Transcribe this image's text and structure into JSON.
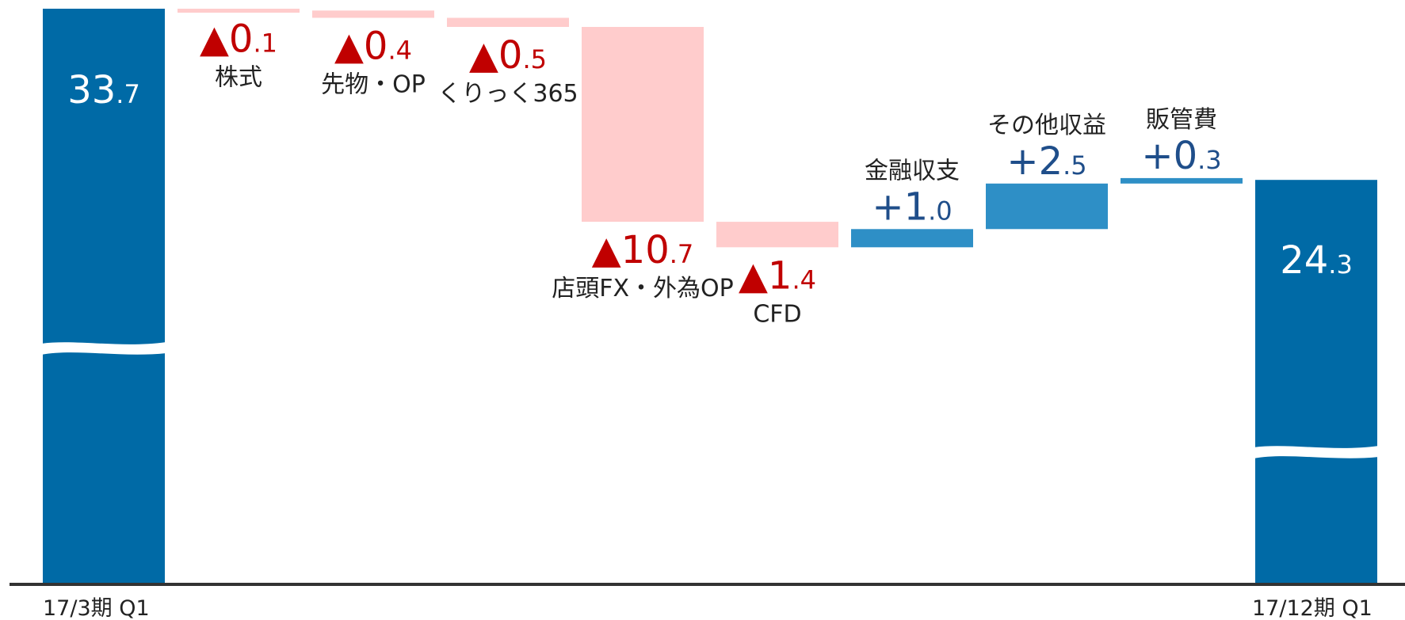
{
  "chart_data": {
    "type": "waterfall",
    "unit_note": "",
    "start": {
      "label": "17/3期 Q1",
      "value": 33.7,
      "int": "33",
      "dec": ".7"
    },
    "end": {
      "label": "17/12期 Q1",
      "value": 24.3,
      "int": "24",
      "dec": ".3"
    },
    "steps": [
      {
        "name": "株式",
        "value": -0.1,
        "prefix": "▲",
        "int": "0",
        "dec": ".1"
      },
      {
        "name": "先物・OP",
        "value": -0.4,
        "prefix": "▲",
        "int": "0",
        "dec": ".4"
      },
      {
        "name": "くりっく365",
        "value": -0.5,
        "prefix": "▲",
        "int": "0",
        "dec": ".5"
      },
      {
        "name": "店頭FX・外為OP",
        "value": -10.7,
        "prefix": "▲",
        "int": "10",
        "dec": ".7"
      },
      {
        "name": "CFD",
        "value": -1.4,
        "prefix": "▲",
        "int": "1",
        "dec": ".4"
      },
      {
        "name": "金融収支",
        "value": 1.0,
        "prefix": "+",
        "int": "1",
        "dec": ".0"
      },
      {
        "name": "その他収益",
        "value": 2.5,
        "prefix": "+",
        "int": "2",
        "dec": ".5"
      },
      {
        "name": "販管費",
        "value": 0.3,
        "prefix": "+",
        "int": "0",
        "dec": ".3"
      }
    ],
    "axis_break": true,
    "colors": {
      "total": "#006AA6",
      "increase": "#2E8FC6",
      "decrease": "#FFCCCC",
      "decrease_text": "#C00000",
      "increase_text": "#1F4E8A",
      "axis": "#333333"
    }
  }
}
